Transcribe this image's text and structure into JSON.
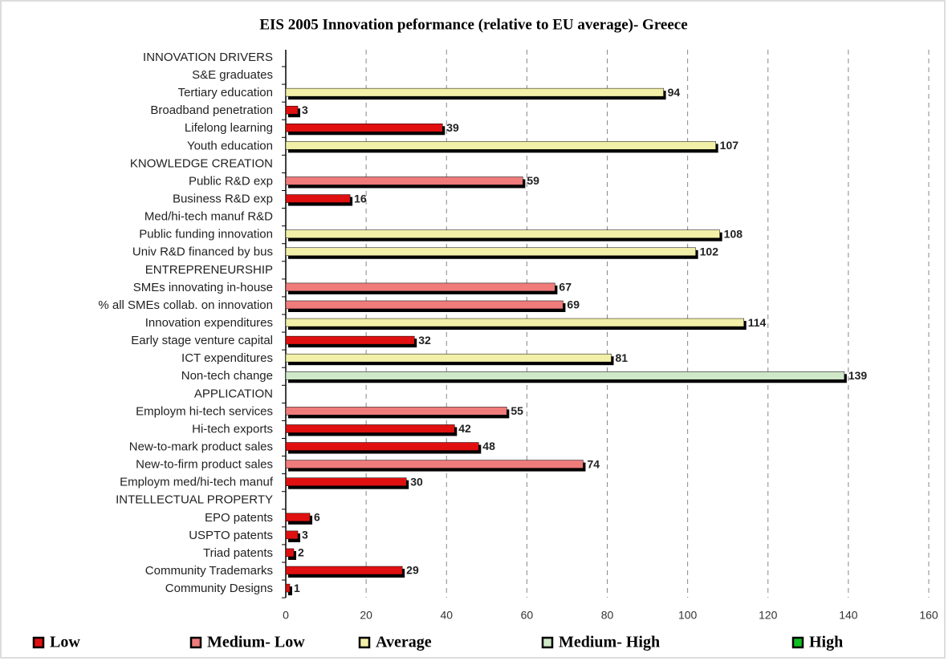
{
  "chart_data": {
    "type": "bar",
    "orientation": "horizontal",
    "title": "EIS 2005 Innovation peformance (relative to EU average)- Greece",
    "categories": [
      "INNOVATION DRIVERS",
      "S&E graduates",
      "Tertiary education",
      "Broadband penetration",
      "Lifelong learning",
      "Youth education",
      "KNOWLEDGE CREATION",
      "Public R&D exp",
      "Business R&D exp",
      "Med/hi-tech manuf R&D",
      "Public funding innovation",
      "Univ R&D financed by bus",
      "ENTREPRENEURSHIP",
      "SMEs innovating in-house",
      "% all SMEs collab. on innovation",
      "Innovation expenditures",
      "Early stage venture capital",
      "ICT expenditures",
      "Non-tech change",
      "APPLICATION",
      "Employm hi-tech services",
      "Hi-tech exports",
      "New-to-mark product sales",
      "New-to-firm product sales",
      "Employm med/hi-tech manuf",
      "INTELLECTUAL PROPERTY",
      "EPO patents",
      "USPTO patents",
      "Triad patents",
      "Community Trademarks",
      "Community Designs"
    ],
    "series": [
      {
        "name": "Low",
        "color": "#e01010",
        "values": [
          null,
          null,
          null,
          3,
          39,
          null,
          null,
          null,
          16,
          null,
          null,
          null,
          null,
          null,
          null,
          null,
          32,
          null,
          null,
          null,
          null,
          42,
          48,
          null,
          30,
          null,
          6,
          3,
          2,
          29,
          1
        ]
      },
      {
        "name": "Medium- Low",
        "color": "#ef7b7b",
        "values": [
          null,
          null,
          null,
          null,
          null,
          null,
          null,
          59,
          null,
          null,
          null,
          null,
          null,
          67,
          69,
          null,
          null,
          null,
          null,
          null,
          55,
          null,
          null,
          74,
          null,
          null,
          null,
          null,
          null,
          null,
          null
        ]
      },
      {
        "name": "Average",
        "color": "#f2f0a8",
        "values": [
          null,
          null,
          94,
          null,
          null,
          107,
          null,
          null,
          null,
          null,
          108,
          102,
          null,
          null,
          null,
          114,
          null,
          81,
          null,
          null,
          null,
          null,
          null,
          null,
          null,
          null,
          null,
          null,
          null,
          null,
          null
        ]
      },
      {
        "name": "Medium- High",
        "color": "#cfe8c8",
        "values": [
          null,
          null,
          null,
          null,
          null,
          null,
          null,
          null,
          null,
          null,
          null,
          null,
          null,
          null,
          null,
          null,
          null,
          null,
          139,
          null,
          null,
          null,
          null,
          null,
          null,
          null,
          null,
          null,
          null,
          null,
          null
        ]
      },
      {
        "name": "High",
        "color": "#10c020",
        "values": [
          null,
          null,
          null,
          null,
          null,
          null,
          null,
          null,
          null,
          null,
          null,
          null,
          null,
          null,
          null,
          null,
          null,
          null,
          null,
          null,
          null,
          null,
          null,
          null,
          null,
          null,
          null,
          null,
          null,
          null,
          null
        ]
      }
    ],
    "xlim": [
      0,
      160
    ],
    "xticks": [
      0,
      20,
      40,
      60,
      80,
      100,
      120,
      140,
      160
    ],
    "grid": true,
    "legend": "bottom"
  }
}
